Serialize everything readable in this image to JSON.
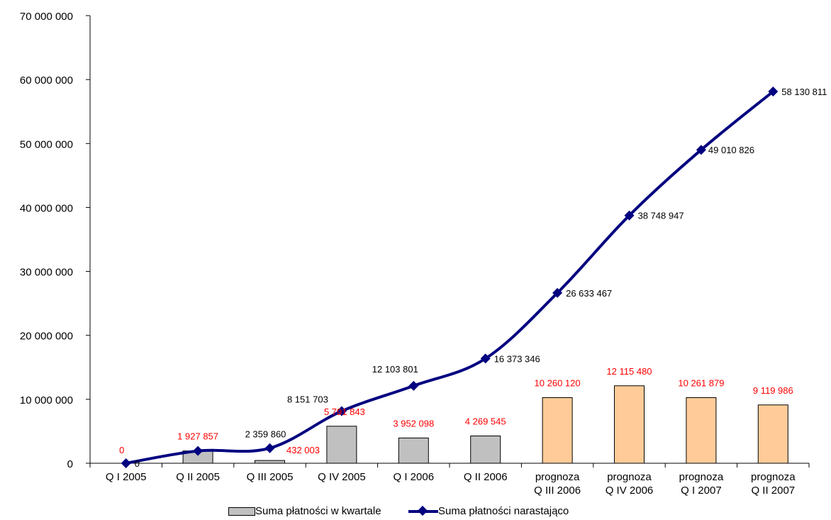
{
  "colors": {
    "bar_actual": "#c0c0c0",
    "bar_forecast": "#ffcc99",
    "bar_border": "#000000",
    "line": "#000080",
    "label_red": "#ff0000",
    "label_black": "#000000"
  },
  "legend": {
    "bar_label": "Suma płatności w kwartale",
    "line_label": "Suma płatności narastająco"
  },
  "chart_data": {
    "type": "bar+line",
    "title": "",
    "xlabel": "",
    "ylabel": "",
    "ylim": [
      0,
      70000000
    ],
    "y_ticks": [
      "0",
      "10 000 000",
      "20 000 000",
      "30 000 000",
      "40 000 000",
      "50 000 000",
      "60 000 000",
      "70 000 000"
    ],
    "y_tick_values": [
      0,
      10000000,
      20000000,
      30000000,
      40000000,
      50000000,
      60000000,
      70000000
    ],
    "grid": false,
    "legend_position": "bottom",
    "categories": [
      [
        "Q I 2005"
      ],
      [
        "Q II 2005"
      ],
      [
        "Q III 2005"
      ],
      [
        "Q IV 2005"
      ],
      [
        "Q I 2006"
      ],
      [
        "Q II 2006"
      ],
      [
        "prognoza",
        "Q III 2006"
      ],
      [
        "prognoza",
        "Q IV 2006"
      ],
      [
        "prognoza",
        "Q I 2007"
      ],
      [
        "prognoza",
        "Q II 2007"
      ]
    ],
    "series": [
      {
        "name": "Suma płatności w kwartale",
        "kind": "bar",
        "values": [
          0,
          1927857,
          432003,
          5791843,
          3952098,
          4269545,
          10260120,
          12115480,
          10261879,
          9119986
        ],
        "labels": [
          "0",
          "1 927 857",
          "432 003",
          "5 791 843",
          "3 952 098",
          "4 269 545",
          "10 260 120",
          "12 115 480",
          "10 261 879",
          "9 119 986"
        ],
        "forecast": [
          false,
          false,
          false,
          false,
          false,
          false,
          true,
          true,
          true,
          true
        ]
      },
      {
        "name": "Suma płatności narastająco",
        "kind": "line",
        "values": [
          0,
          1927857,
          2359860,
          8151703,
          12103801,
          16373346,
          26633467,
          38748947,
          49010826,
          58130811
        ],
        "labels": [
          "0",
          "1 927 857",
          "2 359 860",
          "8 151 703",
          "12 103 801",
          "16 373 346",
          "26 633 467",
          "38 748 947",
          "49 010 826",
          "58 130 811"
        ]
      }
    ]
  }
}
